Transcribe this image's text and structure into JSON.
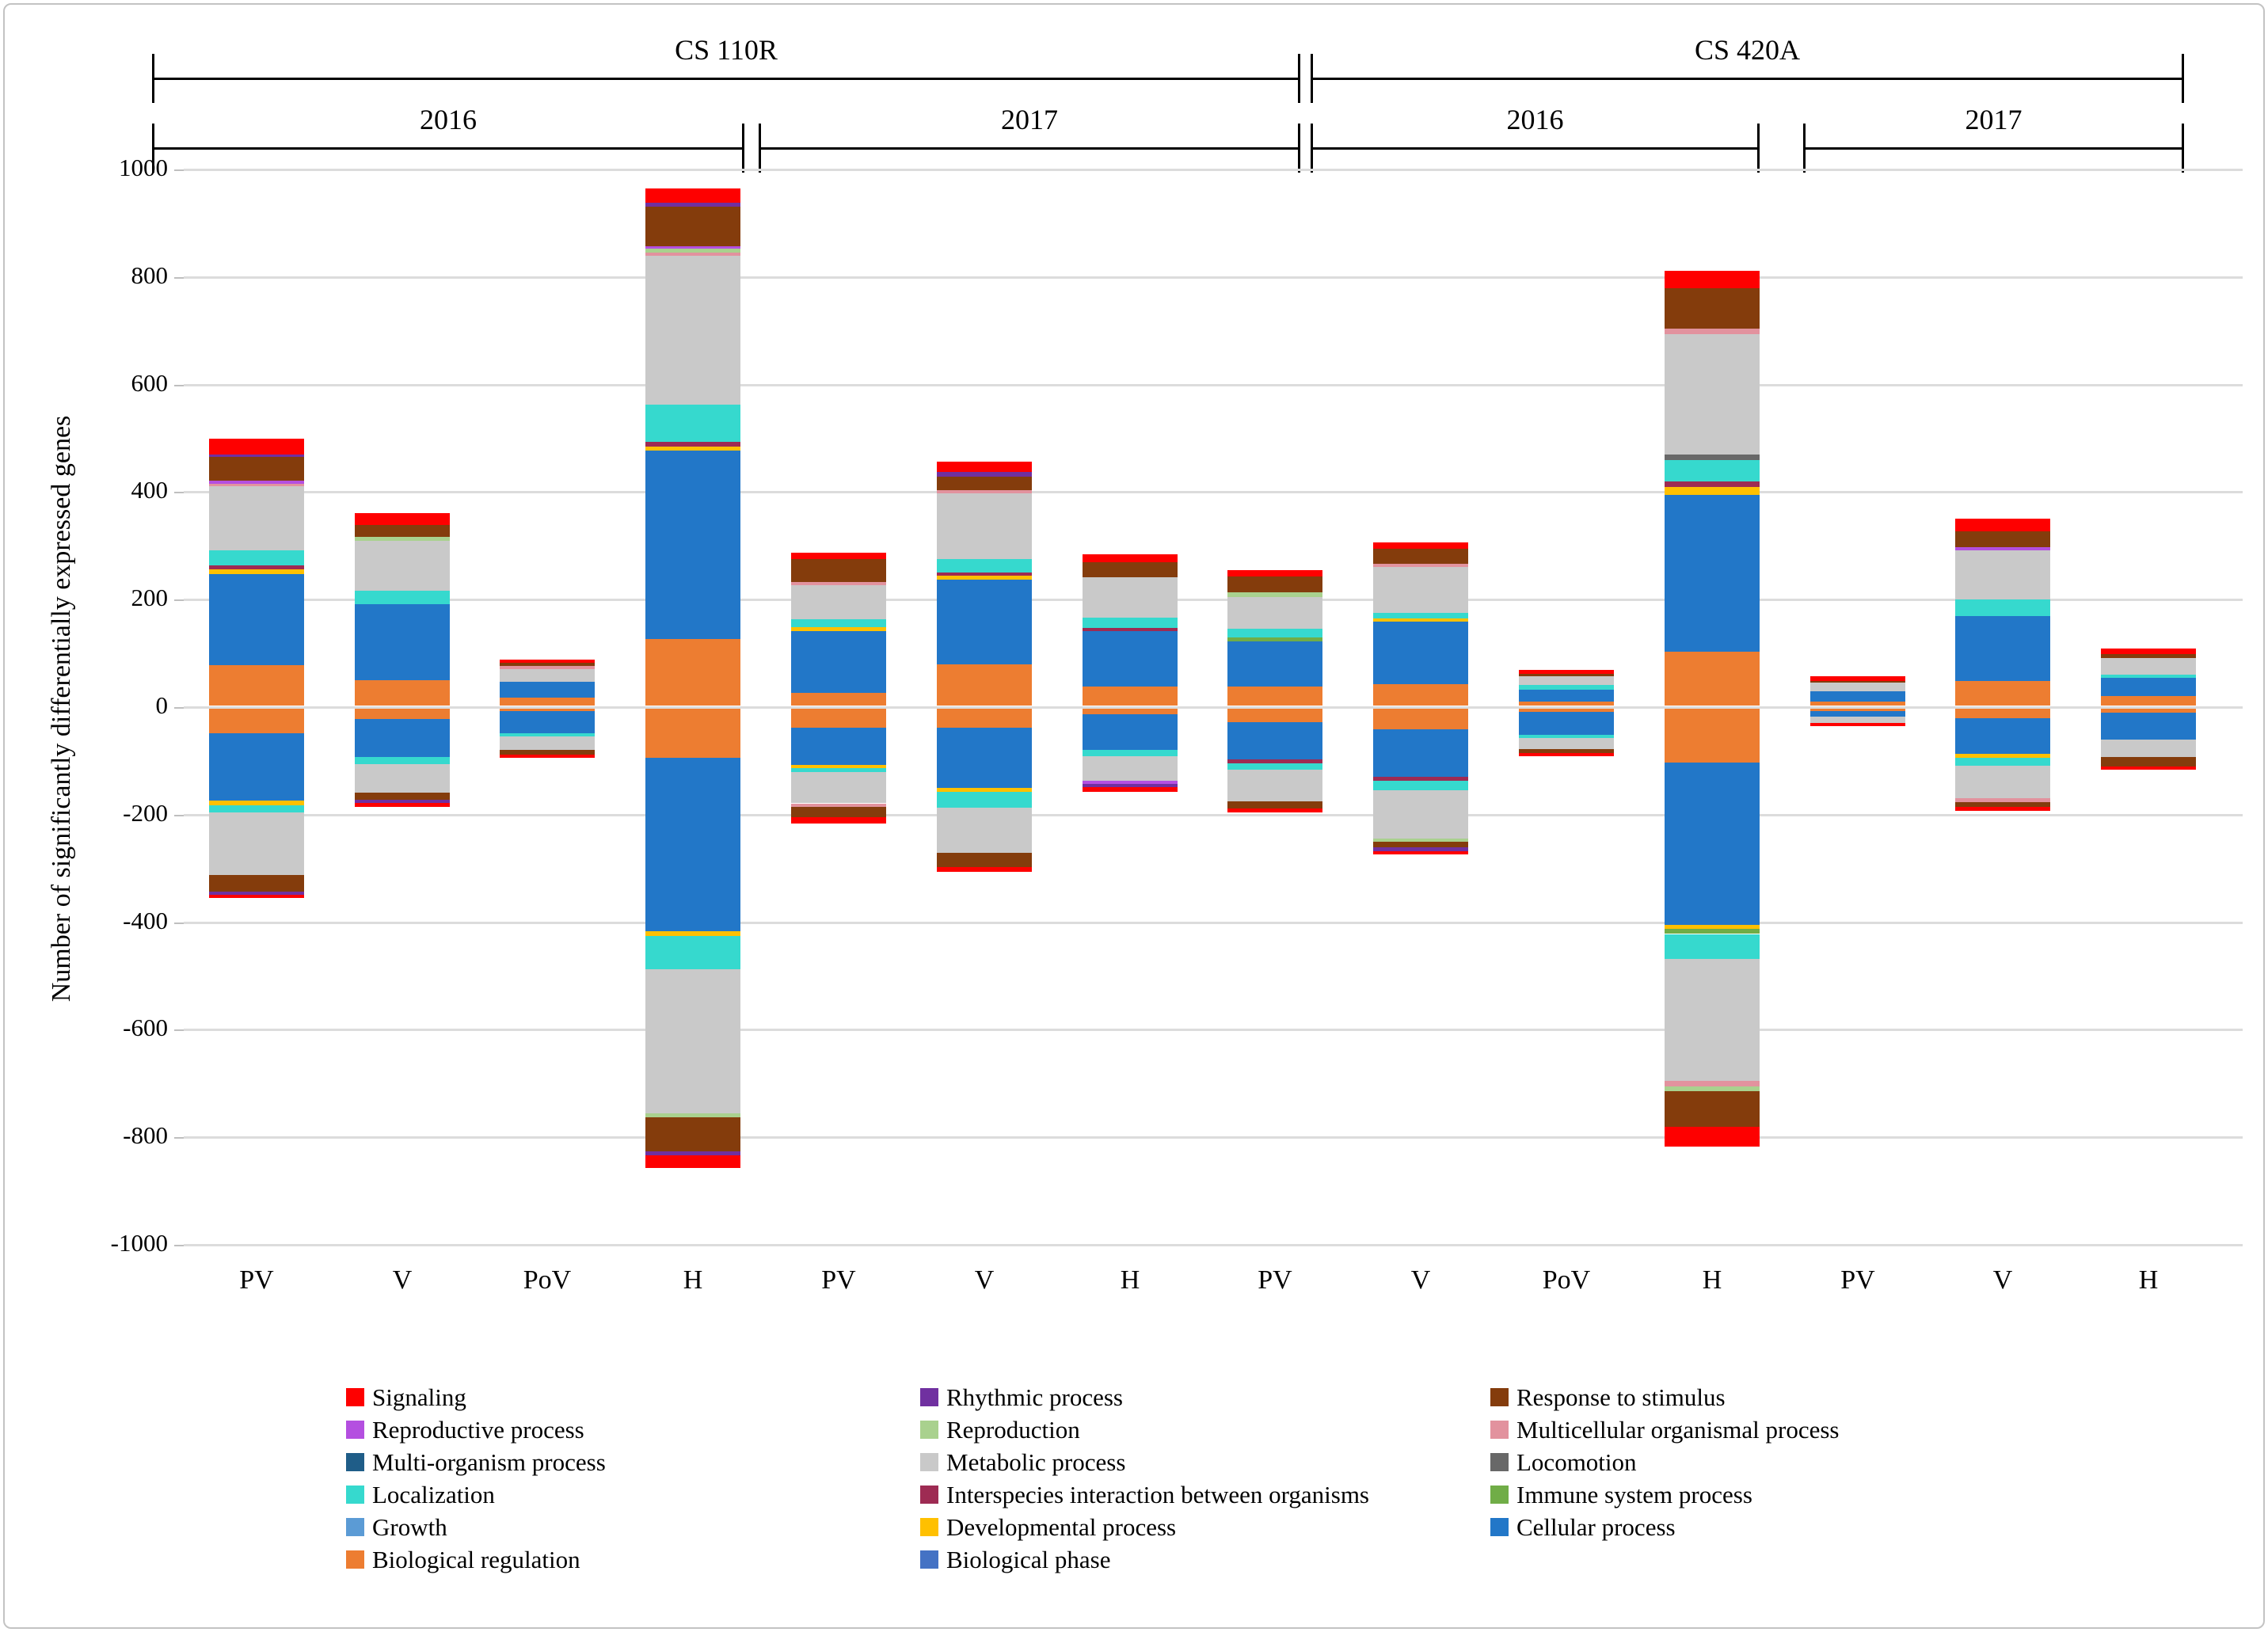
{
  "figure": {
    "y_axis_title": "Number of significantly differentially expressed genes",
    "group_brackets": [
      {
        "label": "CS 110R"
      },
      {
        "label": "CS 420A"
      }
    ],
    "year_brackets": [
      {
        "label": "2016"
      },
      {
        "label": "2017"
      },
      {
        "label": "2016"
      },
      {
        "label": "2017"
      }
    ]
  },
  "legend": {
    "items_row_major": [
      "signaling",
      "rhythmic",
      "response",
      "reproductive",
      "reproduction",
      "multicellular",
      "multiorganism",
      "metabolic",
      "locomotion",
      "localization",
      "interspecies",
      "immune",
      "growth",
      "developmental",
      "cellular",
      "regulation",
      "phase"
    ]
  },
  "chart_data": {
    "type": "bar",
    "subtype": "diverging-stacked-columns",
    "ylabel": "Number of significantly differentially expressed genes",
    "ylim": [
      -1000,
      1000
    ],
    "y_ticks": [
      1000,
      800,
      600,
      400,
      200,
      0,
      -200,
      -400,
      -600,
      -800,
      -1000
    ],
    "grid": true,
    "categories": [
      "PV",
      "V",
      "PoV",
      "H",
      "PV",
      "V",
      "H",
      "PV",
      "V",
      "PoV",
      "H",
      "PV",
      "V",
      "H"
    ],
    "series_stack_order": [
      {
        "id": "phase",
        "name": "Biological phase",
        "color": "#4472C4"
      },
      {
        "id": "regulation",
        "name": "Biological regulation",
        "color": "#ED7D31"
      },
      {
        "id": "cellular",
        "name": "Cellular process",
        "color": "#2277C8"
      },
      {
        "id": "developmental",
        "name": "Developmental process",
        "color": "#FFC000"
      },
      {
        "id": "growth",
        "name": "Growth",
        "color": "#5B9BD5"
      },
      {
        "id": "immune",
        "name": "Immune system process",
        "color": "#70AD47"
      },
      {
        "id": "interspecies",
        "name": "Interspecies interaction between organisms",
        "color": "#9E2B53"
      },
      {
        "id": "localization",
        "name": "Localization",
        "color": "#36D9CE"
      },
      {
        "id": "locomotion",
        "name": "Locomotion",
        "color": "#686868"
      },
      {
        "id": "metabolic",
        "name": "Metabolic process",
        "color": "#C9C9C9"
      },
      {
        "id": "multiorganism",
        "name": "Multi-organism process",
        "color": "#1F5D88"
      },
      {
        "id": "multicellular",
        "name": "Multicellular organismal process",
        "color": "#E2929E"
      },
      {
        "id": "reproduction",
        "name": "Reproduction",
        "color": "#A9D18E"
      },
      {
        "id": "reproductive",
        "name": "Reproductive process",
        "color": "#B44FE0"
      },
      {
        "id": "response",
        "name": "Response to stimulus",
        "color": "#843C0C"
      },
      {
        "id": "rhythmic",
        "name": "Rhythmic process",
        "color": "#7030A0"
      },
      {
        "id": "signaling",
        "name": "Signaling",
        "color": "#FE0000"
      }
    ],
    "bars": [
      {
        "label": "PV",
        "group": "CS 110R",
        "year": "2016",
        "up": {
          "regulation": 75,
          "cellular": 170,
          "developmental": 8,
          "interspecies": 7,
          "localization": 28,
          "metabolic": 120,
          "multicellular": 5,
          "reproductive": 5,
          "response": 45,
          "rhythmic": 4,
          "signaling": 30
        },
        "down": {
          "regulation": 45,
          "cellular": 126,
          "developmental": 8,
          "localization": 14,
          "metabolic": 116,
          "response": 31,
          "rhythmic": 6,
          "signaling": 6
        }
      },
      {
        "label": "V",
        "group": "CS 110R",
        "year": "2016",
        "up": {
          "regulation": 47,
          "cellular": 142,
          "localization": 25,
          "metabolic": 92,
          "reproduction": 7,
          "response": 23,
          "signaling": 22
        },
        "down": {
          "regulation": 19,
          "cellular": 71,
          "localization": 13,
          "metabolic": 53,
          "response": 13,
          "rhythmic": 6,
          "signaling": 7
        }
      },
      {
        "label": "PoV",
        "group": "CS 110R",
        "year": "2016",
        "up": {
          "regulation": 15,
          "cellular": 29,
          "metabolic": 24,
          "multicellular": 5,
          "response": 6,
          "signaling": 7
        },
        "down": {
          "regulation": 5,
          "cellular": 40,
          "localization": 6,
          "metabolic": 26,
          "response": 8,
          "signaling": 7
        }
      },
      {
        "label": "H",
        "group": "CS 110R",
        "year": "2016",
        "up": {
          "regulation": 123,
          "cellular": 351,
          "developmental": 7,
          "interspecies": 10,
          "localization": 69,
          "metabolic": 276,
          "multicellular": 6,
          "reproduction": 8,
          "reproductive": 4,
          "response": 74,
          "rhythmic": 7,
          "signaling": 26
        },
        "down": {
          "regulation": 92,
          "cellular": 322,
          "developmental": 8,
          "localization": 63,
          "metabolic": 268,
          "reproduction": 7,
          "response": 64,
          "rhythmic": 7,
          "signaling": 23
        }
      },
      {
        "label": "PV",
        "group": "CS 110R",
        "year": "2017",
        "up": {
          "regulation": 24,
          "cellular": 115,
          "developmental": 7,
          "localization": 14,
          "metabolic": 64,
          "multicellular": 6,
          "response": 43,
          "signaling": 11
        },
        "down": {
          "regulation": 36,
          "cellular": 68,
          "developmental": 7,
          "localization": 7,
          "metabolic": 58,
          "multicellular": 7,
          "response": 19,
          "signaling": 12
        }
      },
      {
        "label": "V",
        "group": "CS 110R",
        "year": "2017",
        "up": {
          "regulation": 76,
          "cellular": 158,
          "developmental": 7,
          "interspecies": 7,
          "localization": 24,
          "metabolic": 122,
          "multicellular": 7,
          "response": 24,
          "rhythmic": 9,
          "signaling": 20
        },
        "down": {
          "regulation": 36,
          "cellular": 111,
          "developmental": 7,
          "localization": 30,
          "metabolic": 84,
          "response": 26,
          "signaling": 9
        }
      },
      {
        "label": "H",
        "group": "CS 110R",
        "year": "2017",
        "up": {
          "regulation": 35,
          "cellular": 103,
          "interspecies": 6,
          "localization": 20,
          "metabolic": 75,
          "response": 28,
          "signaling": 14
        },
        "down": {
          "regulation": 11,
          "cellular": 65,
          "localization": 12,
          "metabolic": 46,
          "reproductive": 6,
          "rhythmic": 6,
          "signaling": 8
        }
      },
      {
        "label": "PV",
        "group": "CS 420A",
        "year": "2016",
        "up": {
          "regulation": 35,
          "cellular": 85,
          "immune": 6,
          "localization": 17,
          "metabolic": 59,
          "reproduction": 8,
          "response": 30,
          "signaling": 12
        },
        "down": {
          "regulation": 25,
          "cellular": 69,
          "interspecies": 8,
          "localization": 11,
          "metabolic": 60,
          "response": 13,
          "signaling": 7
        }
      },
      {
        "label": "V",
        "group": "CS 420A",
        "year": "2016",
        "up": {
          "regulation": 40,
          "cellular": 116,
          "developmental": 6,
          "localization": 11,
          "metabolic": 84,
          "multicellular": 6,
          "response": 28,
          "signaling": 13
        },
        "down": {
          "regulation": 39,
          "cellular": 88,
          "interspecies": 7,
          "localization": 18,
          "metabolic": 89,
          "reproduction": 6,
          "response": 11,
          "rhythmic": 7,
          "signaling": 6
        }
      },
      {
        "label": "PoV",
        "group": "CS 420A",
        "year": "2016",
        "up": {
          "regulation": 7,
          "cellular": 22,
          "localization": 9,
          "metabolic": 16,
          "response": 5,
          "signaling": 8
        },
        "down": {
          "regulation": 6,
          "cellular": 42,
          "localization": 6,
          "metabolic": 21,
          "response": 7,
          "signaling": 6
        }
      },
      {
        "label": "H",
        "group": "CS 420A",
        "year": "2016",
        "up": {
          "regulation": 100,
          "cellular": 292,
          "developmental": 14,
          "interspecies": 11,
          "localization": 39,
          "locomotion": 11,
          "metabolic": 224,
          "multicellular": 10,
          "response": 75,
          "signaling": 33
        },
        "down": {
          "regulation": 100,
          "cellular": 302,
          "developmental": 8,
          "immune": 9,
          "localization": 46,
          "metabolic": 227,
          "multicellular": 11,
          "reproduction": 9,
          "response": 66,
          "signaling": 36
        }
      },
      {
        "label": "PV",
        "group": "CS 420A",
        "year": "2017",
        "up": {
          "regulation": 8,
          "cellular": 19,
          "metabolic": 15,
          "response": 3,
          "signaling": 9
        },
        "down": {
          "regulation": 4,
          "cellular": 11,
          "metabolic": 11,
          "signaling": 6
        }
      },
      {
        "label": "V",
        "group": "CS 420A",
        "year": "2017",
        "up": {
          "regulation": 46,
          "cellular": 120,
          "localization": 32,
          "metabolic": 90,
          "reproductive": 6,
          "response": 30,
          "signaling": 24
        },
        "down": {
          "regulation": 17,
          "cellular": 67,
          "developmental": 8,
          "localization": 14,
          "metabolic": 61,
          "multicellular": 7,
          "response": 8,
          "signaling": 8
        }
      },
      {
        "label": "H",
        "group": "CS 420A",
        "year": "2017",
        "up": {
          "regulation": 17,
          "cellular": 35,
          "localization": 5,
          "metabolic": 31,
          "response": 8,
          "signaling": 10
        },
        "down": {
          "regulation": 8,
          "cellular": 50,
          "metabolic": 32,
          "response": 18,
          "signaling": 6
        }
      }
    ]
  }
}
